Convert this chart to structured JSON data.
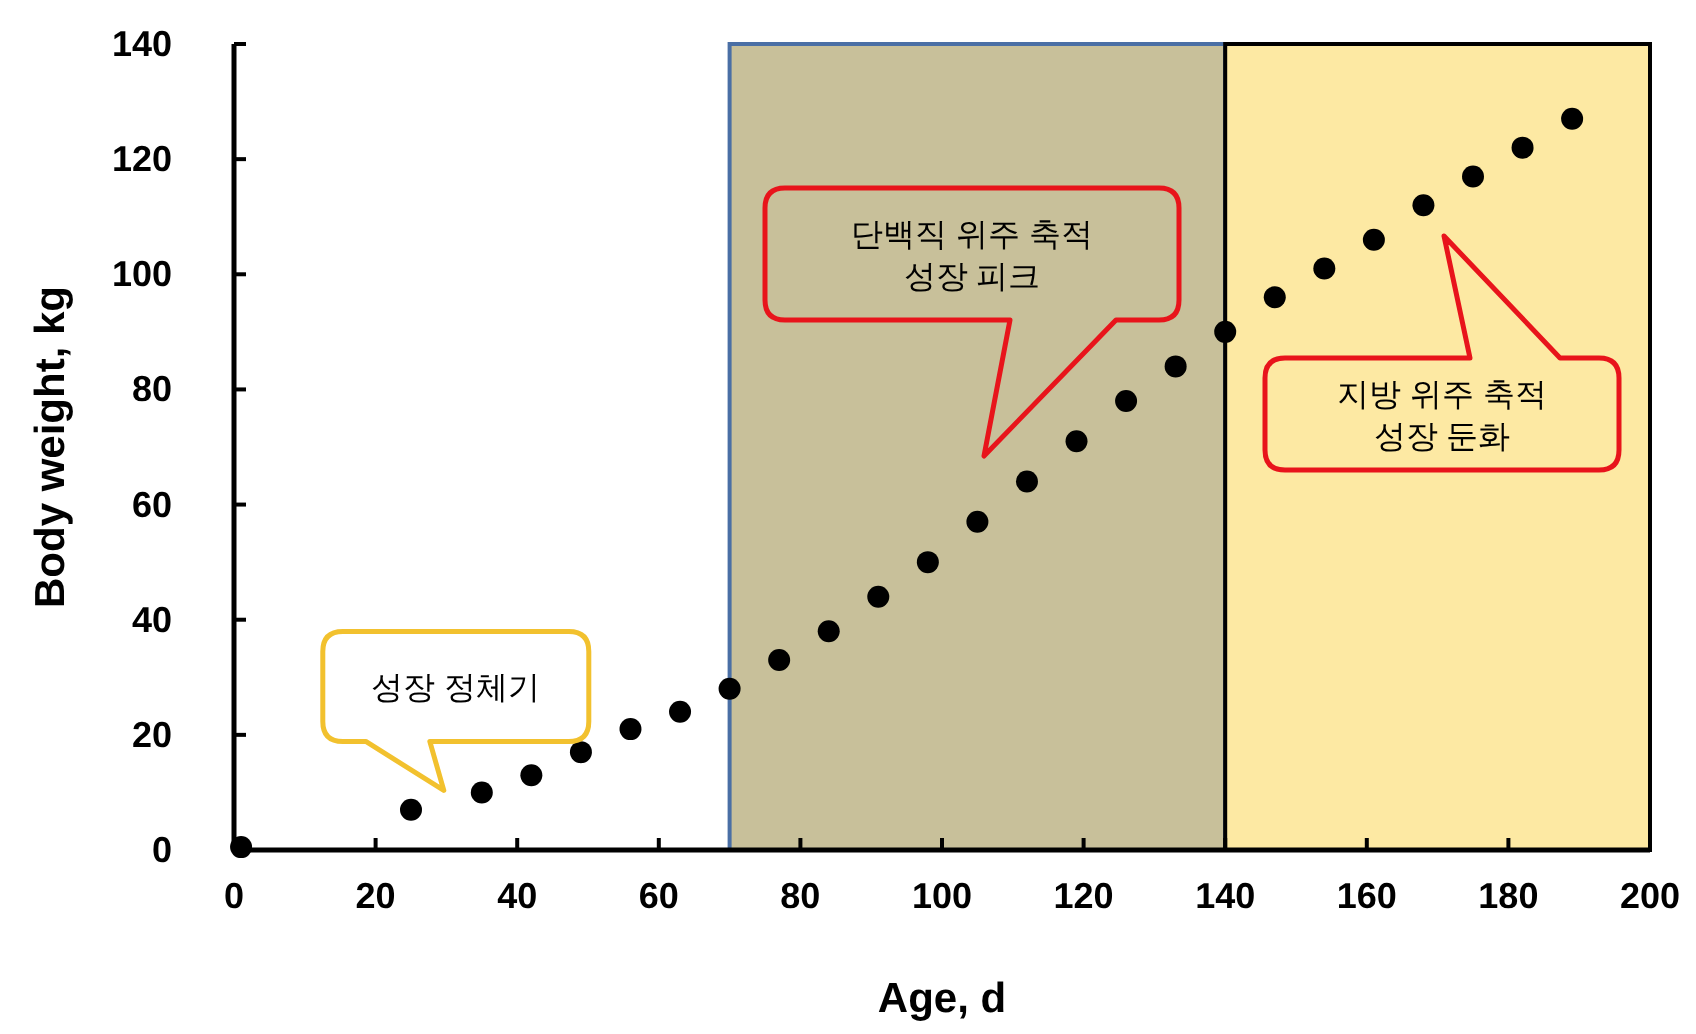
{
  "chart_data": {
    "type": "scatter",
    "xlabel": "Age, d",
    "ylabel": "Body weight, kg",
    "x": [
      1,
      25,
      35,
      42,
      49,
      56,
      63,
      70,
      77,
      84,
      91,
      98,
      105,
      112,
      119,
      126,
      133,
      140,
      147,
      154,
      161,
      168,
      175,
      182,
      189
    ],
    "values": [
      0.5,
      7,
      10,
      13,
      17,
      21,
      24,
      28,
      33,
      38,
      44,
      50,
      57,
      64,
      71,
      78,
      84,
      90,
      96,
      101,
      106,
      112,
      117,
      122,
      127
    ],
    "color": "#000000",
    "marker": "circle",
    "xlim": [
      0,
      200
    ],
    "ylim": [
      0,
      140
    ],
    "xticks": [
      0,
      20,
      40,
      60,
      80,
      100,
      120,
      140,
      160,
      180,
      200
    ],
    "yticks": [
      0,
      20,
      40,
      60,
      80,
      100,
      120,
      140
    ],
    "bands": [
      {
        "axis": "x",
        "from": 70,
        "to": 140,
        "color": "#c8c09a"
      },
      {
        "axis": "x",
        "from": 140,
        "to": 200,
        "color": "#fde9a3"
      }
    ],
    "annotations": [
      {
        "text": "성장 정체기",
        "x": 35,
        "y": 10
      },
      "단백직 위주 축적\n성장 피크",
      "지방 위주 축적\n성장 둔화"
    ]
  }
}
